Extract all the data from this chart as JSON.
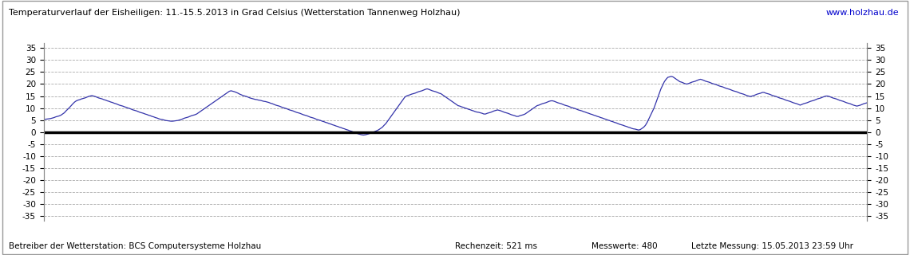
{
  "title": "Temperaturverlauf der Eisheiligen: 11.-15.5.2013 in Grad Celsius (Wetterstation Tannenweg Holzhau)",
  "url_text": "www.holzhau.de",
  "footer_left": "Betreiber der Wetterstation: BCS Computersysteme Holzhau",
  "footer_mid": "Rechenzeit: 521 ms",
  "footer_mid2": "Messwerte: 480",
  "footer_right": "Letzte Messung: 15.05.2013 23:59 Uhr",
  "ylim": [
    -37,
    37
  ],
  "yticks": [
    -35,
    -30,
    -25,
    -20,
    -15,
    -10,
    -5,
    0,
    5,
    10,
    15,
    20,
    25,
    30,
    35
  ],
  "line_color": "#3333aa",
  "zero_line_color": "#000000",
  "grid_color": "#aaaaaa",
  "bg_color": "#ffffff",
  "title_color": "#000000",
  "url_color": "#0000cc",
  "n_points": 480,
  "temperature_profile": [
    5.2,
    5.3,
    5.4,
    5.5,
    5.6,
    5.8,
    6.0,
    6.3,
    6.5,
    6.7,
    7.0,
    7.5,
    8.0,
    8.8,
    9.5,
    10.2,
    11.0,
    11.8,
    12.5,
    13.0,
    13.3,
    13.5,
    13.8,
    14.0,
    14.2,
    14.5,
    14.8,
    15.0,
    15.2,
    15.0,
    14.8,
    14.5,
    14.2,
    14.0,
    13.8,
    13.5,
    13.3,
    13.0,
    12.8,
    12.5,
    12.3,
    12.0,
    11.8,
    11.5,
    11.2,
    11.0,
    10.8,
    10.5,
    10.3,
    10.0,
    9.8,
    9.5,
    9.2,
    9.0,
    8.8,
    8.5,
    8.2,
    8.0,
    7.8,
    7.5,
    7.3,
    7.0,
    6.8,
    6.5,
    6.3,
    6.0,
    5.8,
    5.5,
    5.3,
    5.2,
    5.0,
    4.8,
    4.7,
    4.6,
    4.5,
    4.5,
    4.6,
    4.7,
    4.8,
    5.0,
    5.2,
    5.5,
    5.8,
    6.0,
    6.2,
    6.5,
    6.8,
    7.0,
    7.2,
    7.5,
    8.0,
    8.5,
    9.0,
    9.5,
    10.0,
    10.5,
    11.0,
    11.5,
    12.0,
    12.5,
    13.0,
    13.5,
    14.0,
    14.5,
    15.0,
    15.5,
    16.0,
    16.5,
    17.0,
    17.2,
    17.0,
    16.8,
    16.5,
    16.2,
    15.8,
    15.5,
    15.2,
    15.0,
    14.8,
    14.5,
    14.2,
    14.0,
    13.8,
    13.6,
    13.5,
    13.3,
    13.2,
    13.0,
    12.8,
    12.7,
    12.5,
    12.3,
    12.0,
    11.8,
    11.5,
    11.2,
    11.0,
    10.8,
    10.5,
    10.2,
    10.0,
    9.8,
    9.5,
    9.2,
    9.0,
    8.8,
    8.5,
    8.2,
    8.0,
    7.8,
    7.5,
    7.2,
    7.0,
    6.8,
    6.5,
    6.2,
    6.0,
    5.8,
    5.5,
    5.2,
    5.0,
    4.8,
    4.5,
    4.3,
    4.0,
    3.8,
    3.5,
    3.3,
    3.0,
    2.8,
    2.5,
    2.3,
    2.0,
    1.8,
    1.5,
    1.3,
    1.0,
    0.8,
    0.5,
    0.3,
    0.0,
    -0.2,
    -0.5,
    -0.8,
    -1.0,
    -1.2,
    -1.3,
    -1.2,
    -1.0,
    -0.8,
    -0.5,
    -0.2,
    0.0,
    0.3,
    0.6,
    1.0,
    1.5,
    2.0,
    2.8,
    3.5,
    4.5,
    5.5,
    6.5,
    7.5,
    8.5,
    9.5,
    10.5,
    11.5,
    12.5,
    13.5,
    14.5,
    15.0,
    15.3,
    15.5,
    15.8,
    16.0,
    16.2,
    16.5,
    16.8,
    17.0,
    17.2,
    17.5,
    17.8,
    18.0,
    17.8,
    17.5,
    17.2,
    17.0,
    16.8,
    16.5,
    16.2,
    16.0,
    15.5,
    15.0,
    14.5,
    14.0,
    13.5,
    13.0,
    12.5,
    12.0,
    11.5,
    11.0,
    10.8,
    10.5,
    10.3,
    10.0,
    9.8,
    9.5,
    9.3,
    9.0,
    8.8,
    8.5,
    8.3,
    8.2,
    8.0,
    7.8,
    7.5,
    7.5,
    7.8,
    8.0,
    8.2,
    8.5,
    8.8,
    9.0,
    9.2,
    9.0,
    8.8,
    8.5,
    8.2,
    8.0,
    7.8,
    7.5,
    7.2,
    7.0,
    6.8,
    6.5,
    6.5,
    6.8,
    7.0,
    7.2,
    7.5,
    8.0,
    8.5,
    9.0,
    9.5,
    10.0,
    10.5,
    11.0,
    11.2,
    11.5,
    11.8,
    12.0,
    12.2,
    12.5,
    12.8,
    13.0,
    13.0,
    12.8,
    12.5,
    12.2,
    12.0,
    11.8,
    11.5,
    11.2,
    11.0,
    10.8,
    10.5,
    10.2,
    10.0,
    9.8,
    9.5,
    9.2,
    9.0,
    8.8,
    8.5,
    8.3,
    8.0,
    7.8,
    7.5,
    7.3,
    7.0,
    6.8,
    6.5,
    6.3,
    6.0,
    5.8,
    5.5,
    5.3,
    5.0,
    4.8,
    4.5,
    4.3,
    4.0,
    3.8,
    3.5,
    3.2,
    3.0,
    2.8,
    2.5,
    2.3,
    2.0,
    1.8,
    1.5,
    1.3,
    1.2,
    1.0,
    0.8,
    1.0,
    1.5,
    2.0,
    2.8,
    4.0,
    5.5,
    7.0,
    8.5,
    10.0,
    12.0,
    14.0,
    16.0,
    18.0,
    19.5,
    21.0,
    22.0,
    22.8,
    23.0,
    23.2,
    23.0,
    22.5,
    22.0,
    21.5,
    21.0,
    20.8,
    20.5,
    20.2,
    20.0,
    20.2,
    20.5,
    20.8,
    21.0,
    21.2,
    21.5,
    21.8,
    22.0,
    21.8,
    21.5,
    21.2,
    21.0,
    20.8,
    20.5,
    20.2,
    20.0,
    19.8,
    19.5,
    19.2,
    19.0,
    18.8,
    18.5,
    18.2,
    18.0,
    17.8,
    17.5,
    17.2,
    17.0,
    16.8,
    16.5,
    16.2,
    16.0,
    15.8,
    15.5,
    15.2,
    15.0,
    14.8,
    15.0,
    15.2,
    15.5,
    15.8,
    16.0,
    16.2,
    16.5,
    16.5,
    16.2,
    16.0,
    15.8,
    15.5,
    15.2,
    15.0,
    14.8,
    14.5,
    14.2,
    14.0,
    13.8,
    13.5,
    13.2,
    13.0,
    12.8,
    12.5,
    12.2,
    12.0,
    11.8,
    11.5,
    11.2,
    11.5,
    11.8,
    12.0,
    12.2,
    12.5,
    12.8,
    13.0,
    13.2,
    13.5,
    13.8,
    14.0,
    14.2,
    14.5,
    14.8,
    15.0,
    15.0,
    14.8,
    14.5,
    14.2,
    14.0,
    13.8,
    13.5,
    13.2,
    13.0,
    12.8,
    12.5,
    12.2,
    12.0,
    11.8,
    11.5,
    11.2,
    11.0,
    10.8,
    11.0,
    11.2,
    11.5,
    11.8,
    12.0,
    12.2
  ]
}
